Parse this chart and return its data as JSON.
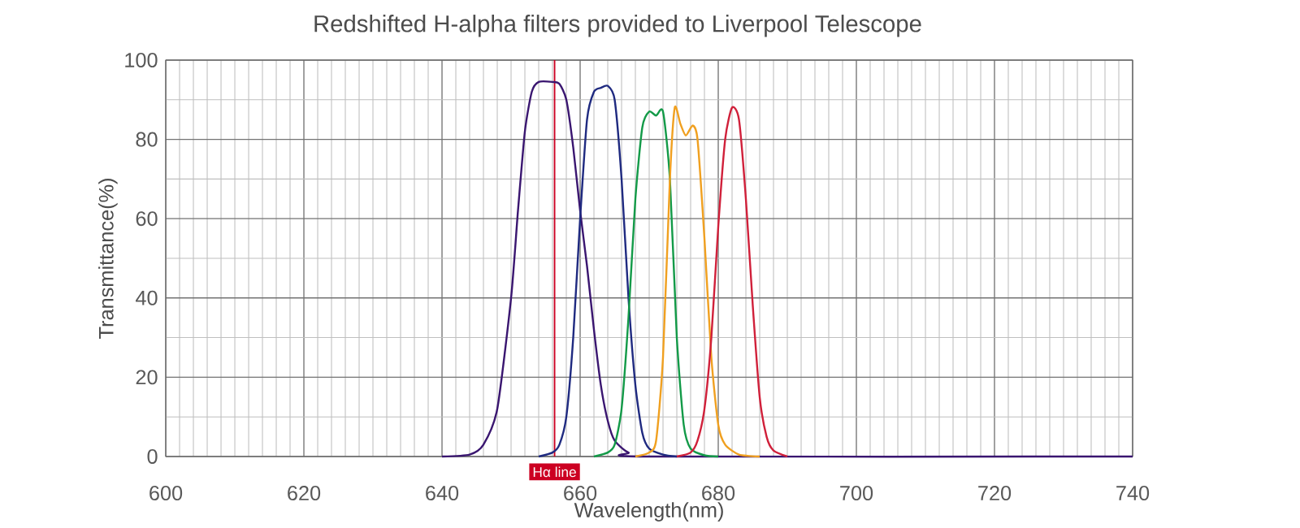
{
  "chart_data": {
    "type": "line",
    "title": "Redshifted H-alpha filters provided to Liverpool Telescope",
    "xlabel": "Wavelength(nm)",
    "ylabel": "Transmittance(%)",
    "xlim": [
      600,
      740
    ],
    "xticks": [
      600,
      620,
      640,
      660,
      680,
      700,
      720,
      740
    ],
    "ylim": [
      0,
      100
    ],
    "yticks": [
      0,
      20,
      40,
      60,
      80,
      100
    ],
    "grid": true,
    "marker": "none",
    "line_style": "solid",
    "ref_lines": [
      {
        "axis": "x",
        "value": 656.3,
        "label": "Hα line",
        "color": "#cc0022"
      }
    ],
    "series": [
      {
        "color": "#3a1670",
        "x": [
          640,
          644,
          646,
          648,
          650,
          651,
          652,
          653,
          654,
          656,
          657,
          658,
          659,
          660,
          661,
          662,
          663,
          664,
          665,
          667,
          670,
          740
        ],
        "values": [
          0,
          0.5,
          3,
          12,
          40,
          62,
          82,
          92,
          94.5,
          94.5,
          94,
          90,
          78,
          62,
          48,
          32,
          18,
          9,
          4,
          1,
          0,
          0
        ]
      },
      {
        "color": "#1f2a80",
        "x": [
          654,
          656,
          657,
          658,
          659,
          660,
          661,
          662,
          663,
          664,
          665,
          666,
          667,
          668,
          669,
          670,
          672,
          674
        ],
        "values": [
          0,
          1,
          3,
          10,
          30,
          60,
          85,
          92,
          93,
          93.5,
          90,
          70,
          40,
          18,
          6,
          2,
          0.5,
          0
        ]
      },
      {
        "color": "#139a48",
        "x": [
          662,
          664,
          665,
          666,
          667,
          668,
          669,
          670,
          671,
          672,
          673,
          674,
          675,
          676,
          678,
          680
        ],
        "values": [
          0,
          1,
          3,
          12,
          35,
          65,
          83,
          87,
          86,
          87,
          70,
          30,
          8,
          2,
          0.3,
          0
        ]
      },
      {
        "color": "#f0a020",
        "x": [
          668,
          670,
          671,
          672,
          673,
          673.7,
          674.5,
          675.3,
          676.3,
          677,
          678,
          679,
          680,
          681,
          683,
          686
        ],
        "values": [
          0,
          1,
          4,
          25,
          70,
          88,
          84,
          81,
          83.5,
          80,
          55,
          25,
          8,
          3,
          0.5,
          0
        ]
      },
      {
        "color": "#d0203a",
        "x": [
          674,
          676,
          677,
          678,
          679,
          680,
          681,
          682,
          683,
          684,
          685,
          686,
          687,
          688,
          690
        ],
        "values": [
          0,
          1,
          4,
          12,
          30,
          58,
          80,
          88,
          85,
          65,
          38,
          15,
          5,
          1.5,
          0
        ]
      }
    ]
  }
}
